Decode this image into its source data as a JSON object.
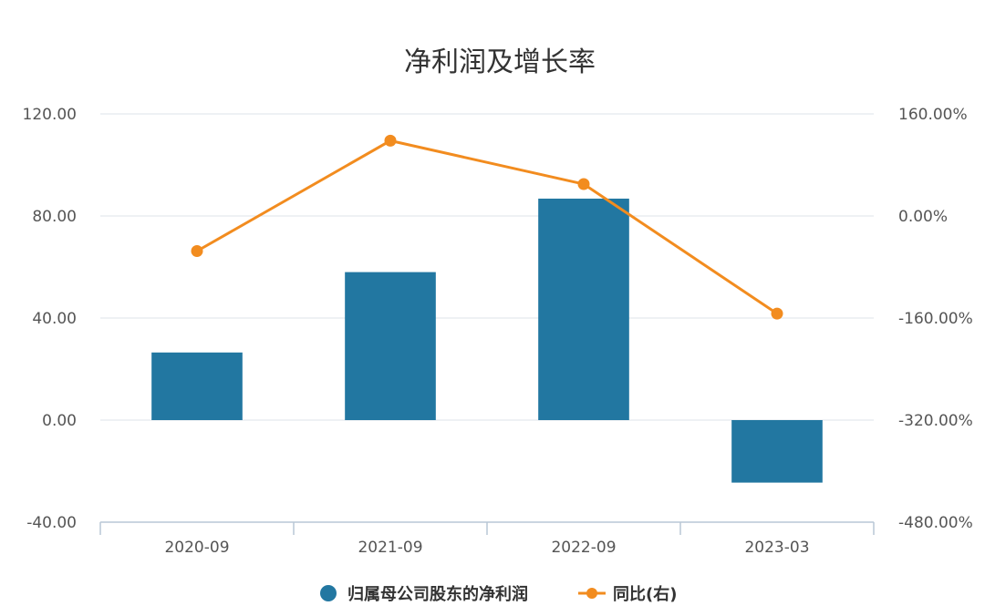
{
  "chart_data": {
    "type": "bar",
    "title": "净利润及增长率",
    "categories": [
      "2020-09",
      "2021-09",
      "2022-09",
      "2023-03"
    ],
    "y_left": {
      "ticks": [
        "120.00",
        "80.00",
        "40.00",
        "0.00",
        "-40.00"
      ],
      "tick_values": [
        120,
        80,
        40,
        0,
        -40
      ],
      "ylim": [
        -40,
        120
      ]
    },
    "y_right": {
      "ticks": [
        "160.00%",
        "0.00%",
        "-160.00%",
        "-320.00%",
        "-480.00%"
      ],
      "tick_values": [
        160,
        0,
        -160,
        -320,
        -480
      ],
      "ylim": [
        -480,
        160
      ]
    },
    "series": [
      {
        "name": "归属母公司股东的净利润",
        "type": "bar",
        "axis": "left",
        "color": "#2277a1",
        "values": [
          26.5,
          58.0,
          86.8,
          -24.5
        ]
      },
      {
        "name": "同比(右)",
        "type": "line",
        "axis": "right",
        "color": "#f28c1f",
        "values": [
          -55,
          118,
          50,
          -153
        ]
      }
    ],
    "grid": true,
    "legend_position": "bottom-center"
  }
}
